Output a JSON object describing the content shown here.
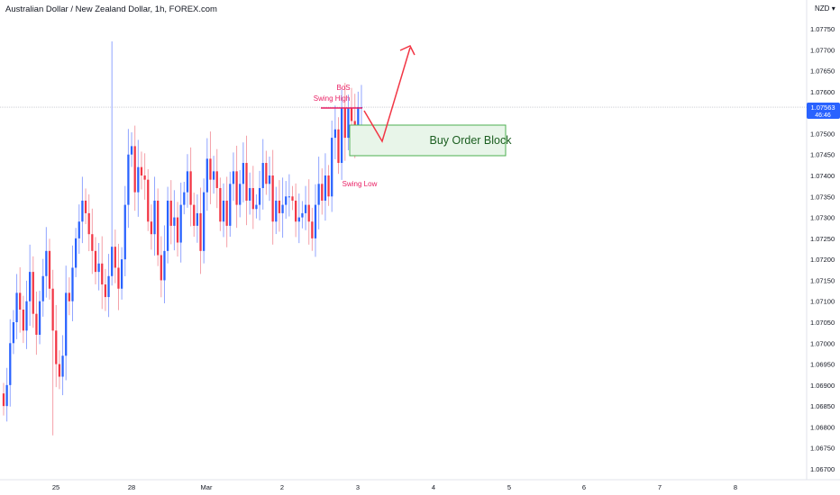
{
  "header": {
    "title": "Australian Dollar / New Zealand Dollar, 1h, FOREX.com",
    "currency": "NZD"
  },
  "price_badge": {
    "price": "1.07563",
    "countdown": "46:46",
    "color": "#2962ff"
  },
  "annotations": {
    "bos": "BoS",
    "swing_high": "Swing High",
    "swing_low": "Swing Low",
    "order_block": "Buy Order Block",
    "label_color": "#e91e63",
    "arrow_color": "#f23645",
    "block_fill": "#e8f5e9",
    "block_border": "#4caf50",
    "block_text_color": "#1b5e20"
  },
  "colors": {
    "up": "#2962ff",
    "down": "#f23645",
    "bull_wick": "#90a4ff",
    "bear_wick": "#f4a0a8"
  },
  "chart_data": {
    "type": "candlestick",
    "ylim": [
      1.0668,
      1.0778
    ],
    "y_ticks": [
      "1.07750",
      "1.07700",
      "1.07650",
      "1.07600",
      "1.07550",
      "1.07500",
      "1.07450",
      "1.07400",
      "1.07350",
      "1.07300",
      "1.07250",
      "1.07200",
      "1.07150",
      "1.07100",
      "1.07050",
      "1.07000",
      "1.06950",
      "1.06900",
      "1.06850",
      "1.06800",
      "1.06750",
      "1.06700"
    ],
    "x_ticks": [
      "25",
      "28",
      "Mar",
      "2",
      "3",
      "4",
      "5",
      "6",
      "7",
      "8"
    ],
    "last_price": 1.07563,
    "seed": 1.0688,
    "candles": [
      1.0685,
      1.069,
      1.07,
      1.0705,
      1.0712,
      1.0708,
      1.0703,
      1.071,
      1.0717,
      1.0707,
      1.0702,
      1.071,
      1.0716,
      1.0722,
      1.0713,
      1.0703,
      1.0695,
      1.0692,
      1.0697,
      1.0712,
      1.071,
      1.0718,
      1.0725,
      1.0729,
      1.0734,
      1.0731,
      1.0726,
      1.0722,
      1.0717,
      1.0719,
      1.0714,
      1.0711,
      1.0716,
      1.0723,
      1.0718,
      1.0713,
      1.072,
      1.0733,
      1.0745,
      1.0747,
      1.0736,
      1.0742,
      1.074,
      1.0739,
      1.0729,
      1.0726,
      1.0734,
      1.0721,
      1.0715,
      1.0722,
      1.0734,
      1.0728,
      1.073,
      1.0724,
      1.0733,
      1.0736,
      1.0741,
      1.0733,
      1.0728,
      1.0731,
      1.0722,
      1.0736,
      1.0744,
      1.0739,
      1.0741,
      1.0737,
      1.0729,
      1.0734,
      1.0728,
      1.0738,
      1.0741,
      1.0733,
      1.0738,
      1.0743,
      1.0734,
      1.0737,
      1.0732,
      1.0733,
      1.0737,
      1.0743,
      1.0738,
      1.074,
      1.0729,
      1.0734,
      1.0731,
      1.0733,
      1.0735,
      1.0735,
      1.0734,
      1.0729,
      1.073,
      1.0731,
      1.0733,
      1.0729,
      1.0725,
      1.0733,
      1.0738,
      1.0734,
      1.074,
      1.0735,
      1.0749,
      1.0751,
      1.0743,
      1.0756,
      1.0749,
      1.0756,
      1.0753,
      1.075,
      1.07563,
      1.07563
    ]
  }
}
